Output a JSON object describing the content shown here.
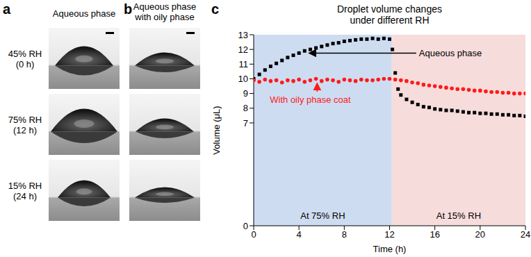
{
  "panel_labels": [
    "a",
    "b",
    "c"
  ],
  "photo_panels": [
    {
      "title": [
        "Aqueous phase"
      ]
    },
    {
      "title": [
        "Aqueous phase",
        "with oily phase"
      ]
    }
  ],
  "row_labels": [
    [
      "45% RH",
      "(0 h)"
    ],
    [
      "75% RH",
      "(12 h)"
    ],
    [
      "15% RH",
      "(24 h)"
    ]
  ],
  "chart_data": {
    "type": "scatter",
    "title": [
      "Droplet volume changes",
      "under different RH"
    ],
    "x_label": "Time (h)",
    "y_label": "Volume (μL)",
    "xlim": [
      0,
      24
    ],
    "xticks": [
      0,
      4,
      8,
      12,
      16,
      20,
      24
    ],
    "ylim": [
      0,
      13
    ],
    "yticks": [
      0,
      7,
      8,
      9,
      10,
      11,
      12,
      13
    ],
    "regions": [
      {
        "label": "At 75% RH",
        "x": [
          0,
          12.2
        ],
        "color": "#cddcf1"
      },
      {
        "label": "At 15% RH",
        "x": [
          12.2,
          24
        ],
        "color": "#f7dcdc"
      }
    ],
    "series": [
      {
        "name": "Aqueous phase",
        "color": "#000000",
        "marker": "square",
        "x": [
          0,
          0.5,
          1,
          1.5,
          2,
          2.5,
          3,
          3.5,
          4,
          4.5,
          5,
          5.5,
          6,
          6.5,
          7,
          7.5,
          8,
          8.5,
          9,
          9.5,
          10,
          10.5,
          11,
          11.5,
          12,
          12.25,
          12.5,
          12.75,
          13,
          13.5,
          14,
          14.5,
          15,
          15.5,
          16,
          16.5,
          17,
          17.5,
          18,
          18.5,
          19,
          19.5,
          20,
          20.5,
          21,
          21.5,
          22,
          22.5,
          23,
          23.5,
          24
        ],
        "values": [
          10.0,
          10.3,
          10.6,
          10.85,
          11.05,
          11.25,
          11.45,
          11.6,
          11.75,
          11.9,
          12.0,
          12.1,
          12.2,
          12.3,
          12.4,
          12.45,
          12.55,
          12.6,
          12.65,
          12.7,
          12.7,
          12.75,
          12.7,
          12.75,
          12.7,
          12.0,
          10.4,
          9.3,
          8.9,
          8.6,
          8.4,
          8.25,
          8.1,
          8.05,
          7.95,
          7.9,
          7.85,
          7.85,
          7.8,
          7.75,
          7.7,
          7.7,
          7.65,
          7.65,
          7.6,
          7.6,
          7.55,
          7.55,
          7.5,
          7.5,
          7.45
        ]
      },
      {
        "name": "With oily phase coat",
        "color": "#ff1a1a",
        "marker": "circle",
        "x": [
          0,
          0.5,
          1,
          1.5,
          2,
          2.5,
          3,
          3.5,
          4,
          4.5,
          5,
          5.5,
          6,
          6.5,
          7,
          7.5,
          8,
          8.5,
          9,
          9.5,
          10,
          10.5,
          11,
          11.5,
          12,
          12.5,
          13,
          13.5,
          14,
          14.5,
          15,
          15.5,
          16,
          16.5,
          17,
          17.5,
          18,
          18.5,
          19,
          19.5,
          20,
          20.5,
          21,
          21.5,
          22,
          22.5,
          23,
          23.5,
          24
        ],
        "values": [
          9.9,
          9.8,
          9.95,
          9.85,
          9.9,
          9.75,
          9.9,
          9.85,
          9.95,
          9.8,
          9.9,
          10.0,
          9.85,
          9.95,
          9.9,
          9.8,
          9.95,
          9.9,
          9.85,
          9.95,
          9.9,
          9.9,
          9.95,
          10.0,
          10.0,
          9.95,
          9.9,
          9.85,
          9.75,
          9.7,
          9.6,
          9.55,
          9.5,
          9.45,
          9.4,
          9.35,
          9.3,
          9.3,
          9.25,
          9.2,
          9.2,
          9.15,
          9.1,
          9.1,
          9.05,
          9.05,
          9.0,
          9.0,
          9.0
        ]
      }
    ]
  }
}
